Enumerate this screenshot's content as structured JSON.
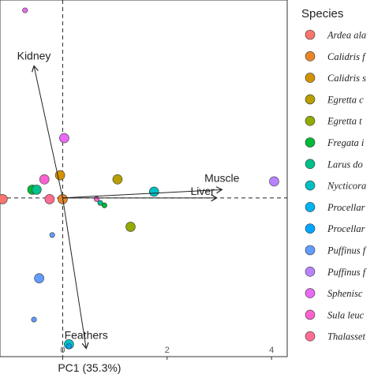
{
  "chart_data": {
    "type": "scatter",
    "xlabel": "PC1 (35.3%)",
    "ylabel": "",
    "xlim": [
      -1.2,
      4.3
    ],
    "ylim": [
      -3.85,
      4.8
    ],
    "xticks": [
      0,
      2,
      4
    ],
    "reference_lines": {
      "x": 0,
      "y": 0,
      "style": "dashed"
    },
    "legend": {
      "title": "Species",
      "placement": "right",
      "entries": [
        {
          "label": "Ardea ala",
          "color": "#F8766D"
        },
        {
          "label": "Calidris f",
          "color": "#E88526"
        },
        {
          "label": "Calidris s",
          "color": "#D39200"
        },
        {
          "label": "Egretta c",
          "color": "#B79F00"
        },
        {
          "label": "Egretta t",
          "color": "#93AA00"
        },
        {
          "label": "Fregata i",
          "color": "#00BA38"
        },
        {
          "label": "Larus do",
          "color": "#00C08B"
        },
        {
          "label": "Nycticora",
          "color": "#00BFC4"
        },
        {
          "label": "Procellar",
          "color": "#00B4F0"
        },
        {
          "label": "Procellar",
          "color": "#00A5FF"
        },
        {
          "label": "Puffinus f",
          "color": "#619CFF"
        },
        {
          "label": "Puffinus f",
          "color": "#B983FF"
        },
        {
          "label": "Sphenisc",
          "color": "#E76BF3"
        },
        {
          "label": "Sula leuc",
          "color": "#FD61D1"
        },
        {
          "label": "Thalasset",
          "color": "#FF6C91"
        }
      ]
    },
    "loadings": [
      {
        "label": "Kidney",
        "x": -0.55,
        "y": 3.2
      },
      {
        "label": "Muscle",
        "x": 3.05,
        "y": 0.2
      },
      {
        "label": "Liver",
        "x": 2.95,
        "y": 0.0
      },
      {
        "label": "Feathers",
        "x": 0.45,
        "y": -3.65
      }
    ],
    "points": [
      {
        "x": -0.72,
        "y": 4.55,
        "color": "#E76BF3",
        "size": "small"
      },
      {
        "x": 0.03,
        "y": 1.45,
        "color": "#E76BF3",
        "size": "large"
      },
      {
        "x": -0.35,
        "y": 0.45,
        "color": "#FD61D1",
        "size": "large"
      },
      {
        "x": -0.05,
        "y": 0.55,
        "color": "#D39200",
        "size": "large"
      },
      {
        "x": 1.05,
        "y": 0.45,
        "color": "#B79F00",
        "size": "large"
      },
      {
        "x": 4.05,
        "y": 0.4,
        "color": "#B983FF",
        "size": "large"
      },
      {
        "x": -0.58,
        "y": 0.2,
        "color": "#00BA38",
        "size": "large"
      },
      {
        "x": -0.5,
        "y": 0.2,
        "color": "#00C08B",
        "size": "large"
      },
      {
        "x": 1.75,
        "y": 0.15,
        "color": "#00BFC4",
        "size": "large"
      },
      {
        "x": -1.15,
        "y": -0.03,
        "color": "#F8766D",
        "size": "large"
      },
      {
        "x": -0.25,
        "y": -0.03,
        "color": "#FF6C91",
        "size": "large"
      },
      {
        "x": 0.0,
        "y": -0.03,
        "color": "#E88526",
        "size": "large"
      },
      {
        "x": 0.65,
        "y": -0.03,
        "color": "#FD61D1",
        "size": "small"
      },
      {
        "x": 0.72,
        "y": -0.12,
        "color": "#00C08B",
        "size": "small"
      },
      {
        "x": 0.8,
        "y": -0.18,
        "color": "#00BA38",
        "size": "small"
      },
      {
        "x": 1.3,
        "y": -0.7,
        "color": "#93AA00",
        "size": "large"
      },
      {
        "x": -0.2,
        "y": -0.9,
        "color": "#619CFF",
        "size": "small"
      },
      {
        "x": -0.45,
        "y": -1.95,
        "color": "#619CFF",
        "size": "large"
      },
      {
        "x": -0.55,
        "y": -2.95,
        "color": "#619CFF",
        "size": "small"
      },
      {
        "x": 0.12,
        "y": -3.55,
        "color": "#00BFC4",
        "size": "large"
      },
      {
        "x": 0.12,
        "y": -3.6,
        "color": "#00A5FF",
        "size": "small"
      }
    ]
  }
}
